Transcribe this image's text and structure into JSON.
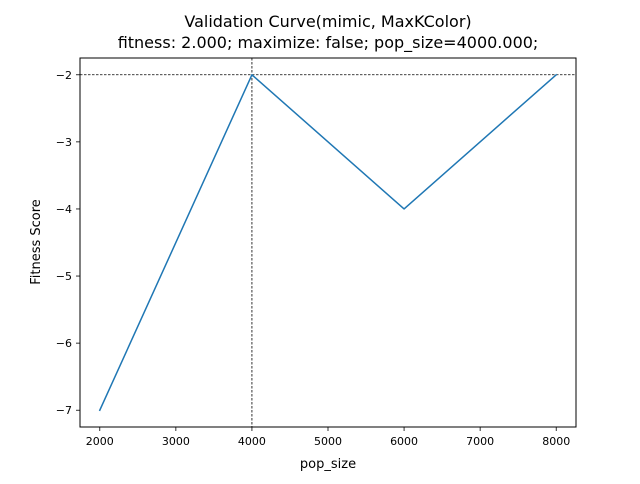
{
  "chart_data": {
    "type": "line",
    "title_line1": "Validation Curve(mimic, MaxKColor)",
    "title_line2": "fitness: 2.000; maximize: false; pop_size=4000.000;",
    "xlabel": "pop_size",
    "ylabel": "Fitness Score",
    "xlim": [
      1740,
      8260
    ],
    "ylim": [
      -7.25,
      -1.75
    ],
    "x_ticks": [
      2000,
      3000,
      4000,
      5000,
      6000,
      7000,
      8000
    ],
    "x_tick_labels": [
      "2000",
      "3000",
      "4000",
      "5000",
      "6000",
      "7000",
      "8000"
    ],
    "y_ticks": [
      -2,
      -3,
      -4,
      -5,
      -6,
      -7
    ],
    "y_tick_labels": [
      "−2",
      "−3",
      "−4",
      "−5",
      "−6",
      "−7"
    ],
    "x": [
      2000,
      4000,
      6000,
      8000
    ],
    "series": [
      {
        "values": [
          -7,
          -2,
          -4,
          -2
        ],
        "color": "#1f77b4"
      }
    ],
    "reference_lines": {
      "x": 4000,
      "y": -2,
      "style": "dashed",
      "color": "#000000"
    },
    "grid": false,
    "legend": "none"
  }
}
